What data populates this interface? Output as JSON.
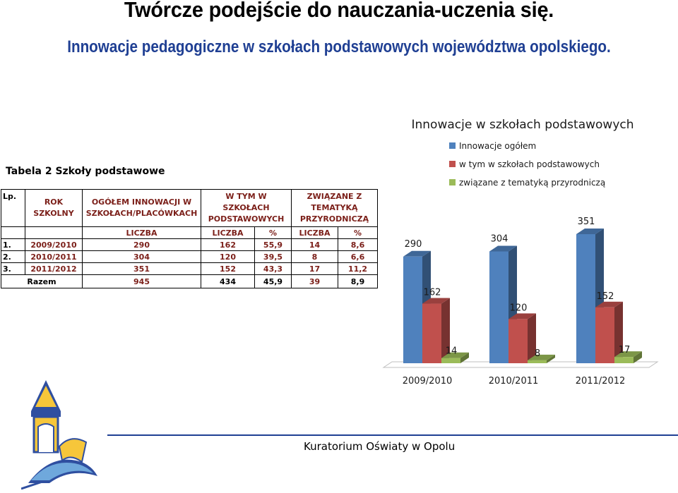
{
  "slide": {
    "title": "Twórcze podejście do nauczania-uczenia się.",
    "subtitle": "Innowacje pedagogiczne w szkołach podstawowych województwa opolskiego.",
    "footer": "Kuratorium Oświaty w Opolu"
  },
  "table": {
    "caption": "Tabela 2 Szkoły podstawowe",
    "headers": [
      "Lp.",
      "ROK SZKOLNY",
      "OGÓŁEM INNOWACJI W SZKOŁACH/PLACÓWKACH",
      "W TYM W SZKOŁACH PODSTAWOWYCH",
      "ZWIĄZANE Z TEMATYKĄ PRZYRODNICZĄ"
    ],
    "subheaders": [
      "LICZBA",
      "LICZBA",
      "%",
      "LICZBA",
      "%"
    ],
    "rows": [
      [
        "1.",
        "2009/2010",
        "290",
        "162",
        "55,9",
        "14",
        "8,6"
      ],
      [
        "2.",
        "2010/2011",
        "304",
        "120",
        "39,5",
        "8",
        "6,6"
      ],
      [
        "3.",
        "2011/2012",
        "351",
        "152",
        "43,3",
        "17",
        "11,2"
      ]
    ],
    "total": [
      "Razem",
      "945",
      "434",
      "45,9",
      "39",
      "8,9"
    ]
  },
  "chart_data": {
    "type": "bar",
    "title": "Innowacje w szkołach podstawowych",
    "categories": [
      "2009/2010",
      "2010/2011",
      "2011/2012"
    ],
    "series": [
      {
        "name": "Innowacje ogółem",
        "values": [
          290,
          304,
          351
        ],
        "color": "#4f81bd"
      },
      {
        "name": "w tym w szkołach podstawowych",
        "values": [
          162,
          120,
          152
        ],
        "color": "#c0504d"
      },
      {
        "name": "związane z tematyką przyrodniczą",
        "values": [
          14,
          8,
          17
        ],
        "color": "#9bbb59"
      }
    ],
    "legend": "top-right",
    "grid": false,
    "ylim": [
      0,
      351
    ],
    "style": "3d-clustered-column"
  }
}
